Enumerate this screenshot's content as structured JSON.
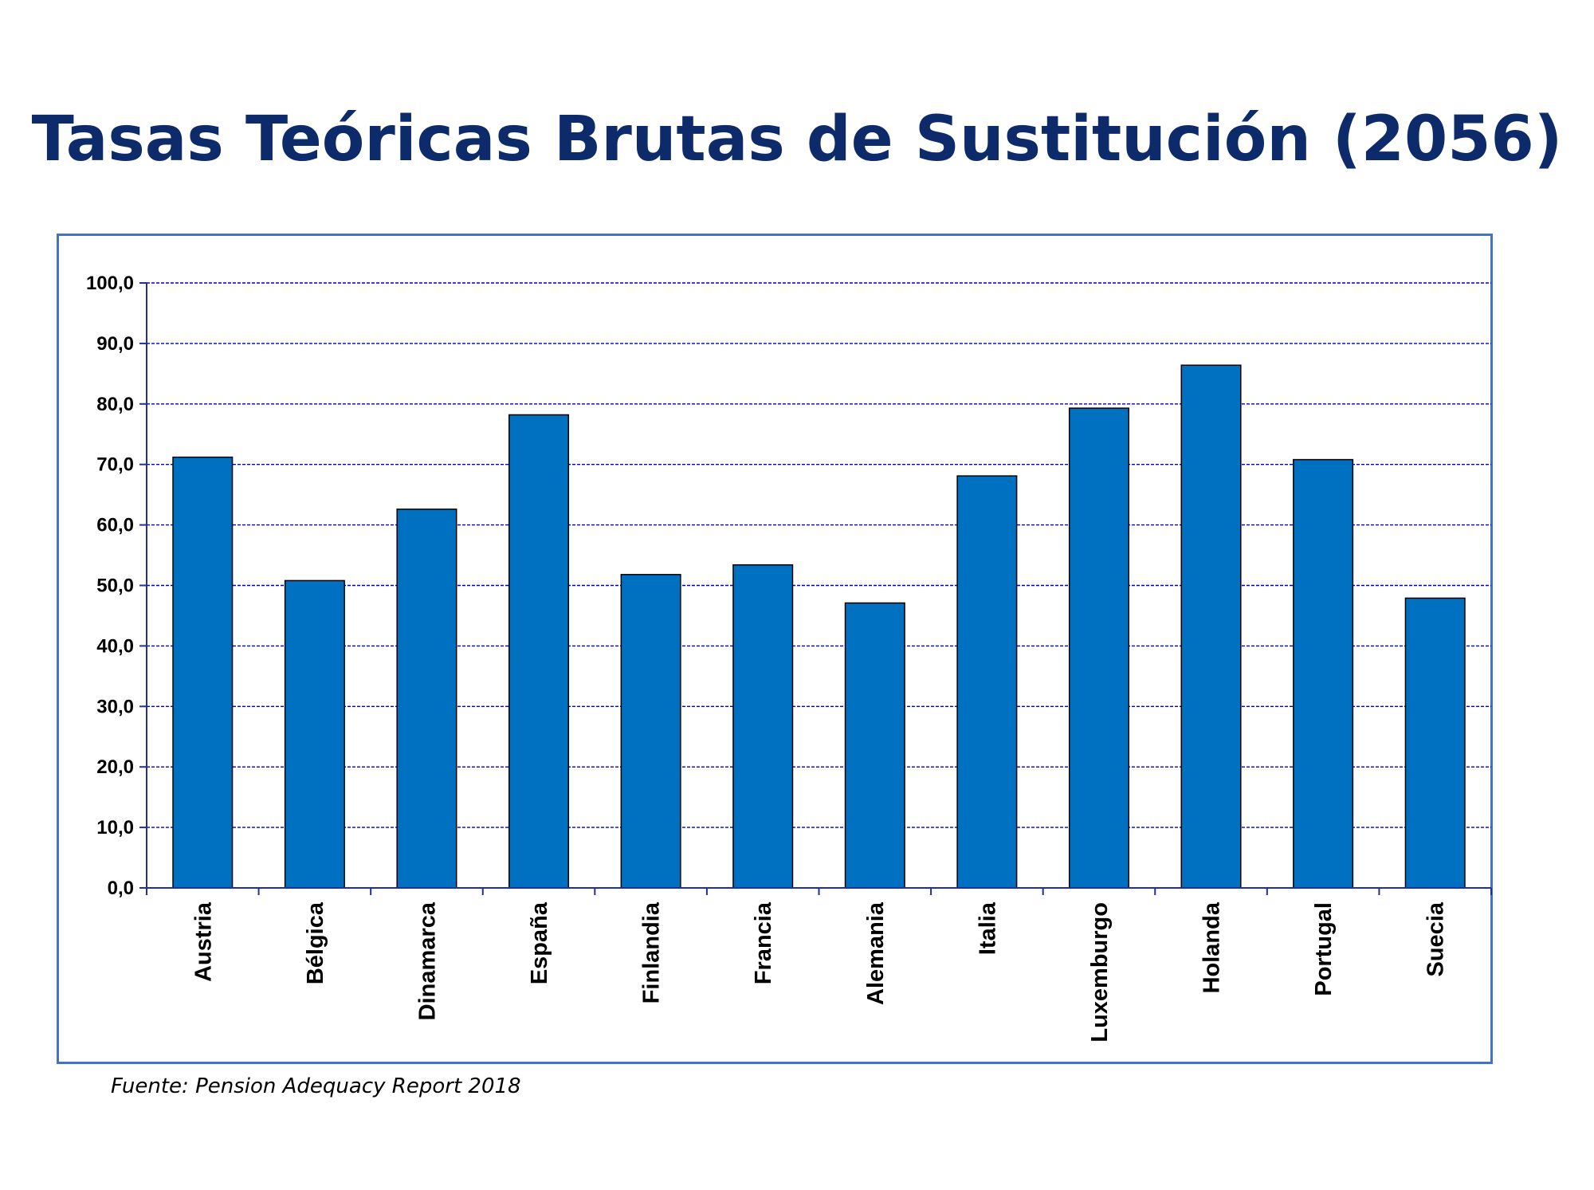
{
  "chart_data": {
    "type": "bar",
    "title": "Tasas Teóricas Brutas de Sustitución (2056)",
    "categories": [
      "Austria",
      "Bélgica",
      "Dinamarca",
      "España",
      "Finlandia",
      "Francia",
      "Alemania",
      "Italia",
      "Luxemburgo",
      "Holanda",
      "Portugal",
      "Suecia"
    ],
    "values": [
      71.2,
      50.8,
      62.6,
      78.2,
      51.8,
      53.4,
      47.1,
      68.1,
      79.3,
      86.4,
      70.8,
      47.9
    ],
    "ylim": [
      0,
      100
    ],
    "yticks": [
      "0,0",
      "10,0",
      "20,0",
      "30,0",
      "40,0",
      "50,0",
      "60,0",
      "70,0",
      "80,0",
      "90,0",
      "100,0"
    ],
    "grid": true,
    "bar_color": "#0070c0",
    "gridline_color": "#0000cc",
    "axis_color": "#1f2fa0"
  },
  "source": "Fuente: Pension Adequacy Report 2018"
}
